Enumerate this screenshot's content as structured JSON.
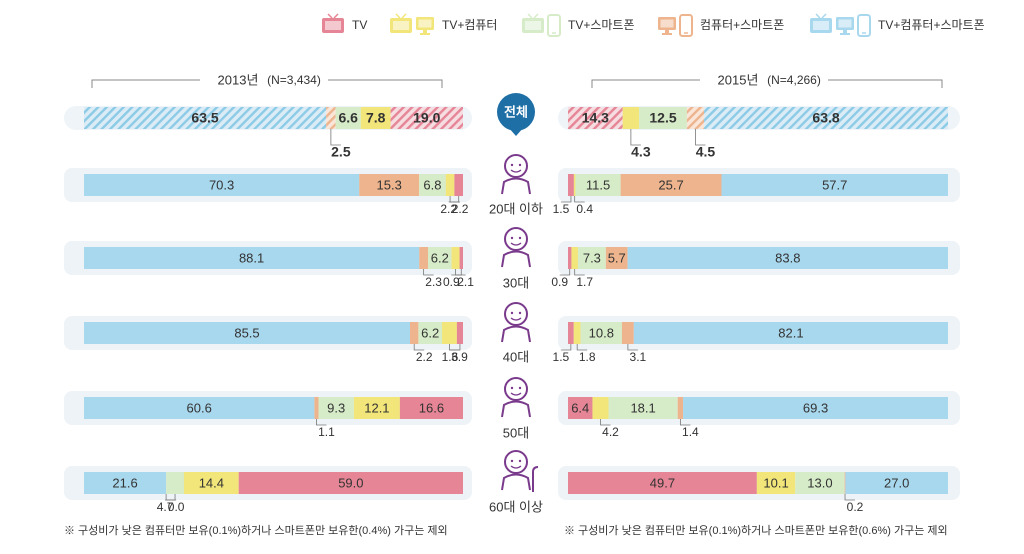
{
  "colors": {
    "tv": "#E58595",
    "tv_computer": "#F2E57A",
    "tv_smartphone": "#D6EBC8",
    "computer_smartphone": "#EDB48E",
    "all_three": "#A8D8EE",
    "track": "#E8F1F7",
    "center_badge": "#1E6FA6",
    "person": "#7A3A8C"
  },
  "legend": [
    {
      "key": "tv",
      "label": "TV",
      "icons": [
        "tv-icon"
      ]
    },
    {
      "key": "tv_computer",
      "label": "TV+컴퓨터",
      "icons": [
        "tv-icon",
        "monitor-icon"
      ]
    },
    {
      "key": "tv_smartphone",
      "label": "TV+스마트폰",
      "icons": [
        "tv-icon",
        "smartphone-icon"
      ]
    },
    {
      "key": "computer_smartphone",
      "label": "컴퓨터+스마트폰",
      "icons": [
        "monitor-icon",
        "smartphone-icon"
      ]
    },
    {
      "key": "all_three",
      "label": "TV+컴퓨터+스마트폰",
      "icons": [
        "tv-icon",
        "monitor-icon",
        "smartphone-icon"
      ]
    }
  ],
  "year_2013": {
    "year": "2013년",
    "n": "(N=3,434)"
  },
  "year_2015": {
    "year": "2015년",
    "n": "(N=4,266)"
  },
  "notes": {
    "left": "※ 구성비가 낮은 컴퓨터만 보유(0.1%)하거나 스마트폰만 보유한(0.4%) 가구는 제외",
    "right": "※ 구성비가 낮은 컴퓨터만 보유(0.1%)하거나 스마트폰만 보유한(0.6%) 가구는 제외"
  },
  "chart_data": {
    "type": "bar",
    "stacked": true,
    "orientation": "horizontal",
    "unit": "%",
    "series_order": [
      "all_three",
      "computer_smartphone",
      "tv_smartphone",
      "tv_computer",
      "tv"
    ],
    "categories": [
      "전체",
      "20대 이하",
      "30대",
      "40대",
      "50대",
      "60대 이상"
    ],
    "panels": [
      {
        "year": "2013년",
        "n": "(N=3,434)",
        "rows": [
          {
            "category": "전체",
            "values": {
              "all_three": 63.5,
              "computer_smartphone": 2.5,
              "tv_smartphone": 6.6,
              "tv_computer": 7.8,
              "tv": 19.0
            },
            "labels": [
              "63.5",
              "2.5",
              "6.6",
              "7.8",
              "19.0"
            ]
          },
          {
            "category": "20대 이하",
            "values": {
              "all_three": 70.3,
              "computer_smartphone": 15.3,
              "tv_smartphone": 6.8,
              "tv_computer": 2.2,
              "tv": 2.2
            },
            "labels": [
              "70.3",
              "15.3",
              "6.8",
              "2.2",
              "2.2"
            ]
          },
          {
            "category": "30대",
            "values": {
              "all_three": 88.1,
              "computer_smartphone": 2.3,
              "tv_smartphone": 6.2,
              "tv_computer": 2.1,
              "tv": 0.9
            },
            "labels": [
              "88.1",
              "2.3",
              "6.2",
              "2.1",
              "0.9"
            ]
          },
          {
            "category": "40대",
            "values": {
              "all_three": 85.5,
              "computer_smartphone": 2.2,
              "tv_smartphone": 6.2,
              "tv_computer": 3.9,
              "tv": 1.6
            },
            "labels": [
              "85.5",
              "2.2",
              "6.2",
              "3.9",
              "1.6"
            ]
          },
          {
            "category": "50대",
            "values": {
              "all_three": 60.6,
              "computer_smartphone": 1.1,
              "tv_smartphone": 9.3,
              "tv_computer": 12.1,
              "tv": 16.6
            },
            "labels": [
              "60.6",
              "1.1",
              "9.3",
              "12.1",
              "16.6"
            ]
          },
          {
            "category": "60대 이상",
            "values": {
              "all_three": 21.6,
              "computer_smartphone": 0.0,
              "tv_smartphone": 4.7,
              "tv_computer": 14.4,
              "tv": 59.0
            },
            "labels": [
              "21.6",
              "0.0",
              "4.7",
              "14.4",
              "59.0"
            ]
          }
        ]
      },
      {
        "year": "2015년",
        "n": "(N=4,266)",
        "rows": [
          {
            "category": "전체",
            "values": {
              "tv": 14.3,
              "tv_computer": 4.3,
              "tv_smartphone": 12.5,
              "computer_smartphone": 4.5,
              "all_three": 63.8
            },
            "labels": [
              "14.3",
              "4.3",
              "12.5",
              "4.5",
              "63.8"
            ]
          },
          {
            "category": "20대 이하",
            "values": {
              "tv": 1.5,
              "tv_computer": 0.4,
              "tv_smartphone": 11.5,
              "computer_smartphone": 25.7,
              "all_three": 57.7
            },
            "labels": [
              "1.5",
              "0.4",
              "11.5",
              "25.7",
              "57.7"
            ]
          },
          {
            "category": "30대",
            "values": {
              "tv": 0.9,
              "tv_computer": 1.7,
              "tv_smartphone": 7.3,
              "computer_smartphone": 5.7,
              "all_three": 83.8
            },
            "labels": [
              "0.9",
              "1.7",
              "7.3",
              "5.7",
              "83.8"
            ]
          },
          {
            "category": "40대",
            "values": {
              "tv": 1.5,
              "tv_computer": 1.8,
              "tv_smartphone": 10.8,
              "computer_smartphone": 3.1,
              "all_three": 82.1
            },
            "labels": [
              "1.5",
              "1.8",
              "10.8",
              "3.1",
              "82.1"
            ]
          },
          {
            "category": "50대",
            "values": {
              "tv": 6.4,
              "tv_computer": 4.2,
              "tv_smartphone": 18.1,
              "computer_smartphone": 1.4,
              "all_three": 69.3
            },
            "labels": [
              "6.4",
              "4.2",
              "18.1",
              "1.4",
              "69.3"
            ]
          },
          {
            "category": "60대 이상",
            "values": {
              "tv": 49.7,
              "tv_computer": 10.1,
              "tv_smartphone": 13.0,
              "computer_smartphone": 0.2,
              "all_three": 27.0
            },
            "labels": [
              "49.7",
              "10.1",
              "13.0",
              "0.2",
              "27.0"
            ]
          }
        ]
      }
    ]
  }
}
